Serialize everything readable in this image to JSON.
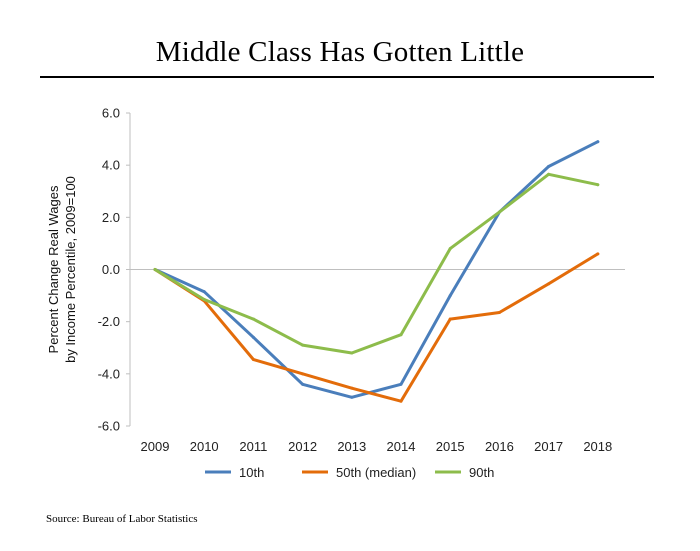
{
  "title": "Middle Class Has Gotten Little",
  "source": "Source: Bureau of Labor Statistics",
  "chart_data": {
    "type": "line",
    "title": "Middle Class Has Gotten Little",
    "ylabel_lines": [
      "Percent Change Real Wages",
      "by Income Percentile, 2009=100"
    ],
    "xlabel": "",
    "x": [
      2009,
      2010,
      2011,
      2012,
      2013,
      2014,
      2015,
      2016,
      2017,
      2018
    ],
    "x_tick_labels": [
      "2009",
      "2010",
      "2011",
      "2012",
      "2013",
      "2014",
      "2015",
      "2016",
      "2017",
      "2018"
    ],
    "ylim": [
      -6,
      6
    ],
    "y_ticks": [
      6,
      4,
      2,
      0,
      -2,
      -4,
      -6
    ],
    "y_tick_labels": [
      "6.0",
      "4.0",
      "2.0",
      "0.0",
      "-2.0",
      "-4.0",
      "-6.0"
    ],
    "grid": false,
    "zero_line": true,
    "legend_position": "bottom",
    "series": [
      {
        "name": "10th",
        "color": "#4A7EBB",
        "values": [
          0,
          -0.85,
          -2.6,
          -4.4,
          -4.9,
          -4.4,
          -1.0,
          2.2,
          3.95,
          4.9
        ]
      },
      {
        "name": "50th (median)",
        "color": "#E36C0A",
        "values": [
          0,
          -1.2,
          -3.45,
          -4.0,
          -4.55,
          -5.05,
          -1.9,
          -1.65,
          -0.55,
          0.6
        ]
      },
      {
        "name": "90th",
        "color": "#8DBC4B",
        "values": [
          0,
          -1.15,
          -1.9,
          -2.9,
          -3.2,
          -2.5,
          0.8,
          2.2,
          3.65,
          3.25
        ]
      }
    ]
  }
}
